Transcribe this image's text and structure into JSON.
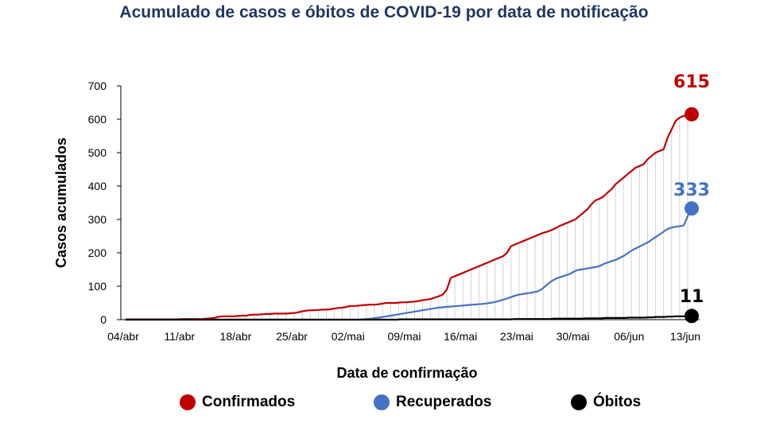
{
  "chart_data": {
    "type": "line",
    "title": "Acumulado de casos e óbitos de COVID-19 por data de notificação",
    "xlabel": "Data de confirmação",
    "ylabel": "Casos acumulados",
    "ylim": [
      0,
      700
    ],
    "yticks": [
      0,
      100,
      200,
      300,
      400,
      500,
      600,
      700
    ],
    "xticks": [
      "04/abr",
      "11/abr",
      "18/abr",
      "25/abr",
      "02/mai",
      "09/mai",
      "16/mai",
      "23/mai",
      "30/mai",
      "06/jun",
      "13/jun"
    ],
    "grid": false,
    "legend_position": "bottom",
    "series": [
      {
        "name": "Confirmados",
        "color": "#c00000",
        "end_label": "615",
        "values": [
          1,
          1,
          1,
          1,
          1,
          1,
          1,
          1,
          1,
          1,
          1,
          1,
          1,
          1,
          2,
          2,
          2,
          2,
          2,
          2,
          3,
          4,
          5,
          8,
          10,
          10,
          10,
          10,
          11,
          12,
          12,
          14,
          15,
          15,
          16,
          17,
          17,
          18,
          18,
          18,
          18,
          19,
          20,
          22,
          25,
          27,
          28,
          28,
          29,
          30,
          30,
          31,
          33,
          35,
          36,
          38,
          41,
          41,
          42,
          43,
          44,
          45,
          45,
          46,
          48,
          50,
          50,
          50,
          51,
          52,
          52,
          53,
          54,
          56,
          58,
          60,
          62,
          66,
          70,
          75,
          90,
          125,
          130,
          135,
          140,
          145,
          150,
          155,
          160,
          165,
          170,
          175,
          180,
          185,
          190,
          200,
          220,
          225,
          230,
          235,
          240,
          245,
          250,
          255,
          260,
          263,
          268,
          273,
          280,
          285,
          290,
          295,
          300,
          310,
          320,
          330,
          345,
          357,
          362,
          368,
          380,
          390,
          405,
          415,
          425,
          435,
          445,
          455,
          460,
          465,
          480,
          490,
          500,
          505,
          510,
          545,
          570,
          595,
          605,
          610,
          612,
          615
        ]
      },
      {
        "name": "Recuperados",
        "color": "#4472c4",
        "end_label": "333",
        "values": [
          0,
          0,
          0,
          0,
          0,
          0,
          0,
          0,
          0,
          0,
          0,
          0,
          0,
          0,
          0,
          0,
          0,
          0,
          0,
          0,
          0,
          0,
          0,
          0,
          0,
          0,
          0,
          0,
          0,
          0,
          0,
          0,
          0,
          0,
          0,
          0,
          0,
          0,
          0,
          0,
          0,
          0,
          0,
          0,
          0,
          0,
          0,
          0,
          0,
          0,
          0,
          0,
          0,
          0,
          0,
          0,
          0,
          0,
          0,
          0,
          1,
          2,
          3,
          5,
          6,
          8,
          10,
          12,
          14,
          16,
          18,
          20,
          22,
          24,
          26,
          28,
          30,
          32,
          34,
          36,
          37,
          38,
          39,
          40,
          41,
          42,
          43,
          44,
          45,
          46,
          47,
          48,
          50,
          52,
          55,
          58,
          62,
          66,
          70,
          74,
          76,
          78,
          80,
          82,
          84,
          90,
          100,
          110,
          118,
          124,
          128,
          132,
          136,
          142,
          148,
          150,
          152,
          154,
          156,
          158,
          162,
          168,
          172,
          176,
          180,
          186,
          192,
          200,
          208,
          214,
          220,
          226,
          232,
          240,
          248,
          256,
          264,
          272,
          276,
          278,
          280,
          282,
          310,
          333
        ]
      },
      {
        "name": "Óbitos",
        "color": "#000000",
        "end_label": "11",
        "values": [
          0,
          0,
          0,
          0,
          0,
          0,
          0,
          0,
          0,
          0,
          0,
          0,
          0,
          0,
          0,
          0,
          0,
          0,
          0,
          0,
          0,
          0,
          0,
          0,
          0,
          0,
          0,
          0,
          0,
          0,
          0,
          0,
          0,
          0,
          0,
          0,
          0,
          0,
          0,
          0,
          0,
          0,
          0,
          0,
          0,
          0,
          0,
          0,
          0,
          0,
          0,
          0,
          0,
          0,
          0,
          0,
          0,
          0,
          0,
          0,
          0,
          0,
          0,
          0,
          0,
          0,
          0,
          0,
          0,
          0,
          1,
          1,
          1,
          1,
          1,
          1,
          1,
          1,
          1,
          1,
          1,
          1,
          1,
          1,
          1,
          1,
          1,
          1,
          1,
          1,
          1,
          1,
          1,
          1,
          1,
          1,
          1,
          1,
          1,
          2,
          2,
          2,
          2,
          2,
          2,
          2,
          2,
          2,
          2,
          3,
          3,
          3,
          3,
          3,
          3,
          3,
          3,
          4,
          4,
          4,
          4,
          4,
          5,
          5,
          5,
          5,
          5,
          5,
          6,
          6,
          6,
          6,
          6,
          7,
          7,
          8,
          8,
          8,
          9,
          9,
          10,
          10,
          10,
          11,
          11
        ]
      }
    ]
  }
}
